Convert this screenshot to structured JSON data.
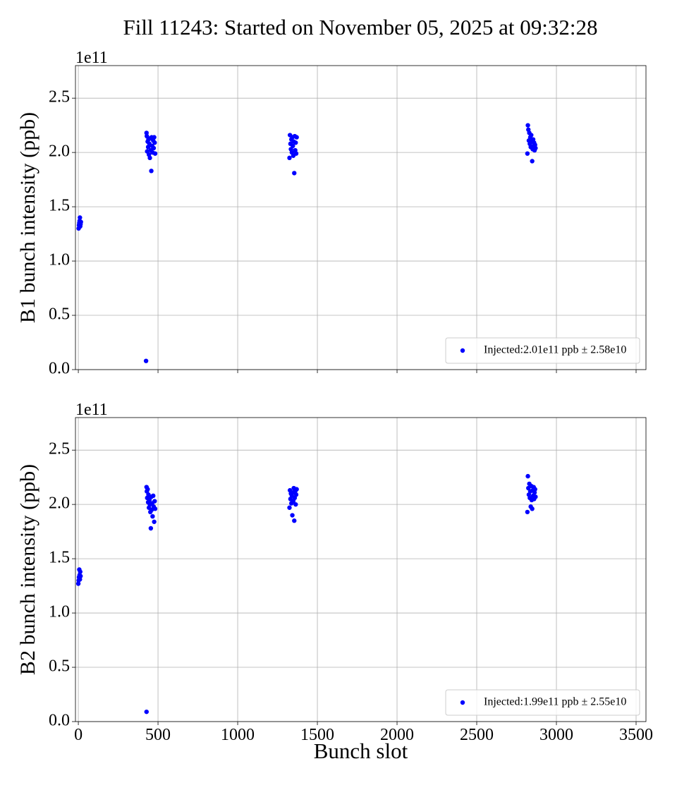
{
  "chart_data": [
    {
      "type": "scatter",
      "title": "Fill 11243: Started on November 05, 2025 at 09:32:28",
      "ylabel": "B1 bunch intensity (ppb)",
      "offset_text": "1e11",
      "xlim": [
        -18,
        3562
      ],
      "ylim": [
        0,
        2.8
      ],
      "xticks": [
        0,
        500,
        1000,
        1500,
        2000,
        2500,
        3000,
        3500
      ],
      "show_xtick_labels": false,
      "yticks": [
        {
          "value": 0,
          "label": "0.0"
        },
        0.5,
        {
          "value": 1,
          "label": "1.0"
        },
        1.5,
        {
          "value": 2,
          "label": "2.0"
        },
        2.5
      ],
      "grid": true,
      "legend": "lower right",
      "series": [
        {
          "name": "Injected:2.01e11 ppb ± 2.58e10",
          "color": "#0000ff",
          "x": [
            2,
            4,
            6,
            8,
            10,
            12,
            14,
            16,
            425,
            428,
            430,
            432,
            435,
            438,
            440,
            443,
            446,
            449,
            452,
            455,
            458,
            460,
            463,
            466,
            470,
            473,
            476,
            479,
            482,
            1325,
            1328,
            1331,
            1334,
            1337,
            1340,
            1343,
            1346,
            1349,
            1352,
            1355,
            1358,
            1361,
            1364,
            1367,
            1370,
            2818,
            2821,
            2824,
            2827,
            2830,
            2833,
            2836,
            2839,
            2842,
            2845,
            2848,
            2851,
            2854,
            2857,
            2860,
            2863,
            2866,
            2869
          ],
          "y": [
            1.3,
            1.33,
            1.35,
            1.37,
            1.4,
            1.32,
            1.34,
            1.36,
            0.08,
            2.18,
            2.15,
            2.01,
            2.1,
            2.05,
            2.12,
            1.98,
            2.08,
            1.95,
            2.13,
            2.02,
            1.83,
            2.14,
            2.06,
            2.0,
            2.11,
            2.04,
            2.14,
            2.09,
            1.99,
            1.95,
            2.16,
            2.08,
            2.03,
            2.12,
            2.0,
            2.14,
            2.06,
            1.97,
            2.1,
            1.81,
            2.15,
            2.02,
            2.09,
            1.99,
            2.14,
            1.99,
            2.25,
            2.21,
            2.11,
            2.18,
            2.08,
            2.14,
            2.05,
            2.16,
            2.1,
            1.92,
            2.03,
            2.12,
            2.06,
            2.09,
            2.02,
            2.07,
            2.04
          ]
        }
      ]
    },
    {
      "type": "scatter",
      "xlabel": "Bunch slot",
      "ylabel": "B2 bunch intensity (ppb)",
      "offset_text": "1e11",
      "xlim": [
        -18,
        3562
      ],
      "ylim": [
        0,
        2.8
      ],
      "xticks": [
        0,
        500,
        1000,
        1500,
        2000,
        2500,
        3000,
        3500
      ],
      "show_xtick_labels": true,
      "yticks": [
        {
          "value": 0,
          "label": "0.0"
        },
        0.5,
        {
          "value": 1,
          "label": "1.0"
        },
        1.5,
        {
          "value": 2,
          "label": "2.0"
        },
        2.5
      ],
      "grid": true,
      "legend": "lower right",
      "series": [
        {
          "name": "Injected:1.99e11 ppb ± 2.55e10",
          "color": "#0000ff",
          "x": [
            0,
            2,
            4,
            6,
            8,
            10,
            12,
            14,
            428,
            428,
            430,
            432,
            435,
            438,
            440,
            443,
            446,
            449,
            452,
            455,
            458,
            460,
            463,
            466,
            470,
            473,
            476,
            479,
            482,
            1325,
            1328,
            1331,
            1334,
            1337,
            1340,
            1343,
            1346,
            1349,
            1352,
            1355,
            1358,
            1361,
            1364,
            1367,
            1370,
            2818,
            2821,
            2824,
            2827,
            2830,
            2833,
            2836,
            2839,
            2842,
            2845,
            2848,
            2851,
            2854,
            2857,
            2860,
            2863,
            2866,
            2869
          ],
          "y": [
            1.27,
            1.3,
            1.33,
            1.4,
            1.35,
            1.31,
            1.38,
            1.34,
            0.09,
            2.16,
            2.12,
            2.06,
            2.14,
            2.02,
            2.09,
            1.97,
            2.04,
            2.0,
            1.93,
            1.78,
            2.07,
            1.95,
            2.01,
            1.89,
            2.08,
            1.98,
            1.84,
            2.03,
            1.96,
            1.97,
            2.13,
            2.05,
            2.1,
            2.01,
            2.08,
            1.9,
            2.11,
            2.03,
            2.15,
            1.85,
            2.06,
            2.12,
            2.0,
            2.09,
            2.14,
            1.93,
            2.26,
            2.15,
            2.09,
            2.19,
            2.06,
            2.12,
            1.98,
            2.17,
            2.04,
            1.96,
            2.13,
            2.08,
            2.16,
            2.05,
            2.11,
            2.14,
            2.07
          ]
        }
      ]
    }
  ]
}
